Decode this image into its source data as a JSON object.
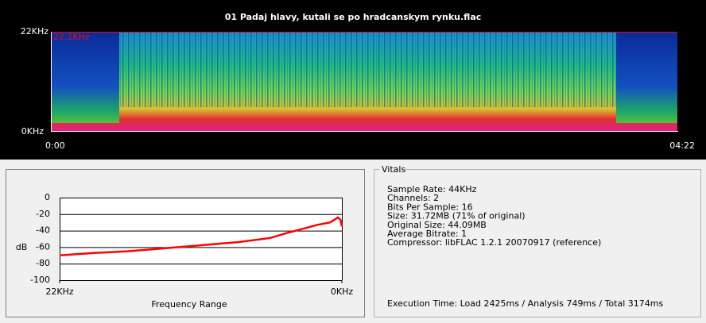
{
  "spectrogram": {
    "title": "01 Padaj hlavy, kutali se po hradcanskym rynku.flac",
    "freq_top": "22KHz",
    "freq_bottom": "0KHz",
    "max_freq_marker": "22.1KHz",
    "time_start": "0:00",
    "time_end": "04:22"
  },
  "chart_data": {
    "type": "line",
    "y_label": "dB",
    "x_label": "Frequency Range",
    "x": [
      22,
      19.2,
      16.7,
      14.3,
      11.2,
      8.1,
      5.6,
      4.3,
      3.1,
      1.9,
      0.9,
      0.3,
      0.1,
      0
    ],
    "series": [
      {
        "color": "#ff0000",
        "values": [
          -70,
          -67,
          -65,
          -62,
          -58,
          -54,
          -49,
          -43,
          -38,
          -33,
          -30,
          -24,
          -27,
          -35
        ]
      }
    ],
    "xlim": [
      22,
      0
    ],
    "xticks": [
      {
        "value": 22,
        "label": "22KHz"
      },
      {
        "value": 0,
        "label": "0KHz"
      }
    ],
    "ylim": [
      -100,
      0
    ],
    "yticks": [
      -100,
      -80,
      -60,
      -40,
      -20,
      0
    ],
    "grid": true
  },
  "vitals": {
    "title": "Vitals",
    "lines": [
      "Sample Rate: 44KHz",
      "Channels: 2",
      "Bits Per Sample: 16",
      "Size: 31.72MB (71% of original)",
      "Original Size: 44.09MB",
      "Average Bitrate: 1",
      "Compressor: libFLAC 1.2.1 20070917 (reference)"
    ],
    "execution": "Execution Time: Load 2425ms / Analysis 749ms / Total 3174ms"
  }
}
